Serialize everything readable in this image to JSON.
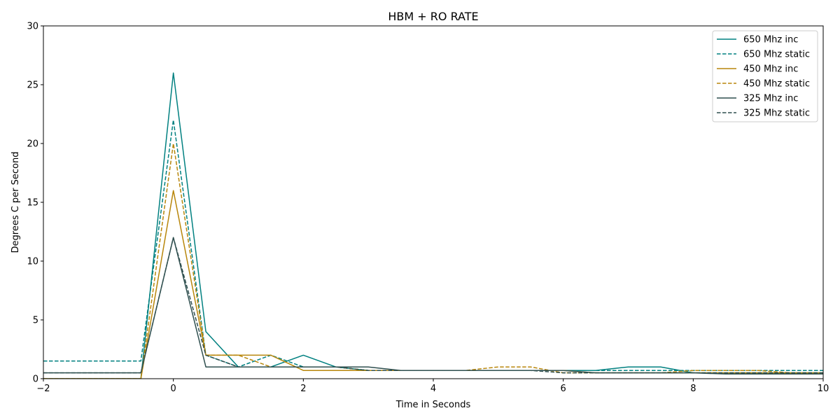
{
  "chart_data": {
    "type": "line",
    "title": "HBM + RO RATE",
    "xlabel": "Time in Seconds",
    "ylabel": "Degrees C per Second",
    "xlim": [
      -2,
      10
    ],
    "ylim": [
      0,
      30
    ],
    "xticks": [
      -2,
      0,
      2,
      4,
      6,
      8,
      10
    ],
    "yticks": [
      0,
      5,
      10,
      15,
      20,
      25,
      30
    ],
    "grid": false,
    "legend_position": "top-right",
    "series": [
      {
        "name": "650 Mhz inc",
        "color": "#008080",
        "dash": "solid",
        "x": [
          -2,
          -0.5,
          0,
          0.5,
          1,
          1.5,
          2,
          2.5,
          3,
          3.5,
          4,
          4.5,
          5,
          5.5,
          6,
          6.5,
          7,
          7.5,
          8,
          8.5,
          9,
          9.5,
          10
        ],
        "y": [
          0,
          0,
          26,
          4,
          1,
          1,
          2,
          1,
          0.7,
          0.7,
          0.7,
          0.7,
          0.7,
          0.7,
          0.7,
          0.7,
          1,
          1,
          0.5,
          0.5,
          0.5,
          0.5,
          0.5
        ]
      },
      {
        "name": "650 Mhz static",
        "color": "#008080",
        "dash": "dashed",
        "x": [
          -2,
          -0.5,
          0,
          0.5,
          1,
          1.5,
          2,
          2.5,
          3,
          3.5,
          4,
          4.5,
          5,
          5.5,
          6,
          6.5,
          7,
          7.5,
          8,
          8.5,
          9,
          9.5,
          10
        ],
        "y": [
          1.5,
          1.5,
          22,
          2,
          1,
          2,
          1,
          1,
          0.7,
          0.7,
          0.7,
          0.7,
          0.7,
          0.7,
          0.7,
          0.7,
          0.7,
          0.7,
          0.7,
          0.7,
          0.7,
          0.7,
          0.7
        ]
      },
      {
        "name": "450 Mhz inc",
        "color": "#b8860b",
        "dash": "solid",
        "x": [
          -2,
          -0.5,
          0,
          0.5,
          1,
          1.5,
          2,
          2.5,
          3,
          3.5,
          4,
          4.5,
          5,
          5.5,
          6,
          6.5,
          7,
          7.5,
          8,
          8.5,
          9,
          9.5,
          10
        ],
        "y": [
          0,
          0,
          16,
          2,
          2,
          2,
          0.7,
          0.7,
          0.7,
          0.7,
          0.7,
          0.7,
          0.7,
          0.7,
          0.7,
          0.5,
          0.5,
          0.5,
          0.5,
          0.5,
          0.5,
          0.5,
          0.5
        ]
      },
      {
        "name": "450 Mhz static",
        "color": "#b8860b",
        "dash": "dashed",
        "x": [
          -2,
          -0.5,
          0,
          0.5,
          1,
          1.5,
          2,
          2.5,
          3,
          3.5,
          4,
          4.5,
          5,
          5.5,
          6,
          6.5,
          7,
          7.5,
          8,
          8.5,
          9,
          9.5,
          10
        ],
        "y": [
          0,
          0,
          20,
          2,
          2,
          1,
          1,
          1,
          0.7,
          0.7,
          0.7,
          0.7,
          1,
          1,
          0.5,
          0.5,
          0.5,
          0.5,
          0.7,
          0.7,
          0.7,
          0.5,
          0.5
        ]
      },
      {
        "name": "325 Mhz inc",
        "color": "#2f4f4f",
        "dash": "solid",
        "x": [
          -2,
          -0.5,
          0,
          0.5,
          1,
          1.5,
          2,
          2.5,
          3,
          3.5,
          4,
          4.5,
          5,
          5.5,
          6,
          6.5,
          7,
          7.5,
          8,
          8.5,
          9,
          9.5,
          10
        ],
        "y": [
          0.5,
          0.5,
          12,
          1,
          1,
          1,
          1,
          1,
          1,
          0.7,
          0.7,
          0.7,
          0.7,
          0.7,
          0.7,
          0.5,
          0.5,
          0.5,
          0.5,
          0.4,
          0.4,
          0.4,
          0.4
        ]
      },
      {
        "name": "325 Mhz static",
        "color": "#2f4f4f",
        "dash": "dashed",
        "x": [
          -2,
          -0.5,
          0,
          0.5,
          1,
          1.5,
          2,
          2.5,
          3,
          3.5,
          4,
          4.5,
          5,
          5.5,
          6,
          6.5,
          7,
          7.5,
          8,
          8.5,
          9,
          9.5,
          10
        ],
        "y": [
          0.5,
          0.5,
          12,
          2,
          1,
          1,
          1,
          1,
          0.7,
          0.7,
          0.7,
          0.7,
          0.7,
          0.7,
          0.5,
          0.5,
          0.5,
          0.5,
          0.5,
          0.5,
          0.5,
          0.5,
          0.5
        ]
      }
    ]
  }
}
